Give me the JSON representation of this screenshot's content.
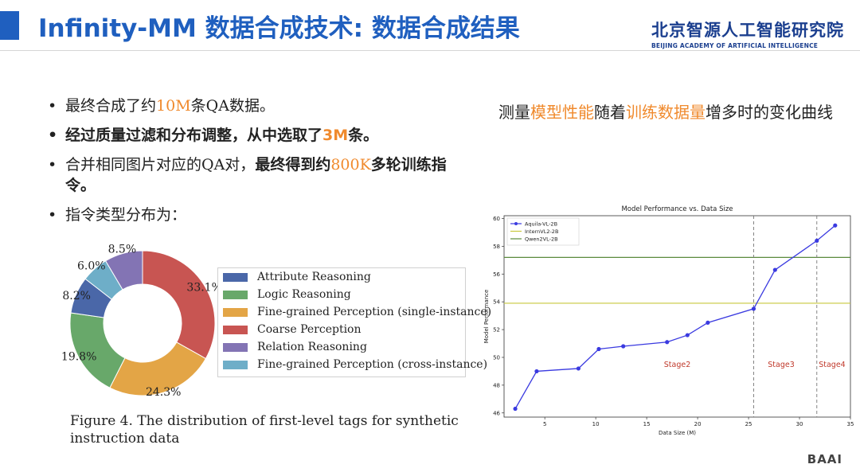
{
  "header": {
    "title": "Infinity-MM 数据合成技术: 数据合成结果",
    "logo_cn": "北京智源人工智能研究院",
    "logo_en": "BEIJING ACADEMY OF ARTIFICIAL INTELLIGENCE"
  },
  "bullets": [
    {
      "pre": "最终合成了约",
      "hl": "10M",
      "post": "条QA数据。"
    },
    {
      "pre": "经过质量过滤和分布调整，从中选取了",
      "hl": "3M",
      "post": "条。"
    },
    {
      "pre": "合并相同图片对应的QA对，",
      "strong": "最终得到约",
      "hl": "800K",
      "post": "多轮训练指令。"
    },
    {
      "pre": "指令类型分布为："
    }
  ],
  "right_caption": {
    "a": "测量",
    "b": "模型性能",
    "c": "随着",
    "d": "训练数据量",
    "e": "增多时的变化曲线"
  },
  "figure_caption": "Figure 4. The distribution of first-level tags for synthetic instruction data",
  "footer_logo": "BAAI",
  "chart_data": [
    {
      "type": "pie",
      "donut": true,
      "labels": [
        "Attribute Reasoning",
        "Logic Reasoning",
        "Fine-grained Perception (single-instance)",
        "Coarse Perception",
        "Relation Reasoning",
        "Fine-grained Perception (cross-instance)"
      ],
      "values": [
        8.2,
        19.8,
        24.3,
        33.1,
        8.5,
        6.0
      ],
      "value_labels": [
        "8.2%",
        "19.8%",
        "24.3%",
        "33.1%",
        "8.5%",
        "6.0%"
      ],
      "colors": [
        "#4a67a8",
        "#68a86a",
        "#e3a546",
        "#c85552",
        "#8374b4",
        "#6eaec8"
      ],
      "legend_position": "right"
    },
    {
      "type": "line",
      "title": "Model Performance vs. Data Size",
      "xlabel": "Data Size (M)",
      "ylabel": "Model Performance",
      "xlim": [
        1,
        35
      ],
      "ylim": [
        45.7,
        60.2
      ],
      "xticks": [
        5,
        10,
        15,
        20,
        25,
        30,
        35
      ],
      "yticks": [
        46,
        48,
        50,
        52,
        54,
        56,
        58,
        60
      ],
      "series": [
        {
          "name": "Aquila-VL-2B",
          "color": "#3a3ae0",
          "x": [
            2.1,
            4.2,
            8.3,
            10.3,
            12.7,
            17.0,
            19.0,
            21.0,
            25.5,
            27.6,
            31.7,
            33.5
          ],
          "y": [
            46.3,
            49.0,
            49.2,
            50.6,
            50.8,
            51.1,
            51.6,
            52.5,
            53.5,
            56.3,
            58.4,
            59.5
          ]
        },
        {
          "name": "InternVL2-2B",
          "color": "#c8c83c",
          "hline": 53.9
        },
        {
          "name": "Qwen2VL-2B",
          "color": "#5a8a3c",
          "hline": 57.2
        }
      ],
      "vlines": [
        25.5,
        31.7
      ],
      "annotations": [
        {
          "text": "Stage2",
          "x": 18.0,
          "y": 49.3
        },
        {
          "text": "Stage3",
          "x": 28.2,
          "y": 49.3
        },
        {
          "text": "Stage4",
          "x": 33.2,
          "y": 49.3
        }
      ],
      "annotation_color": "#c0392b",
      "legend_position": "top-left",
      "grid": false
    }
  ]
}
